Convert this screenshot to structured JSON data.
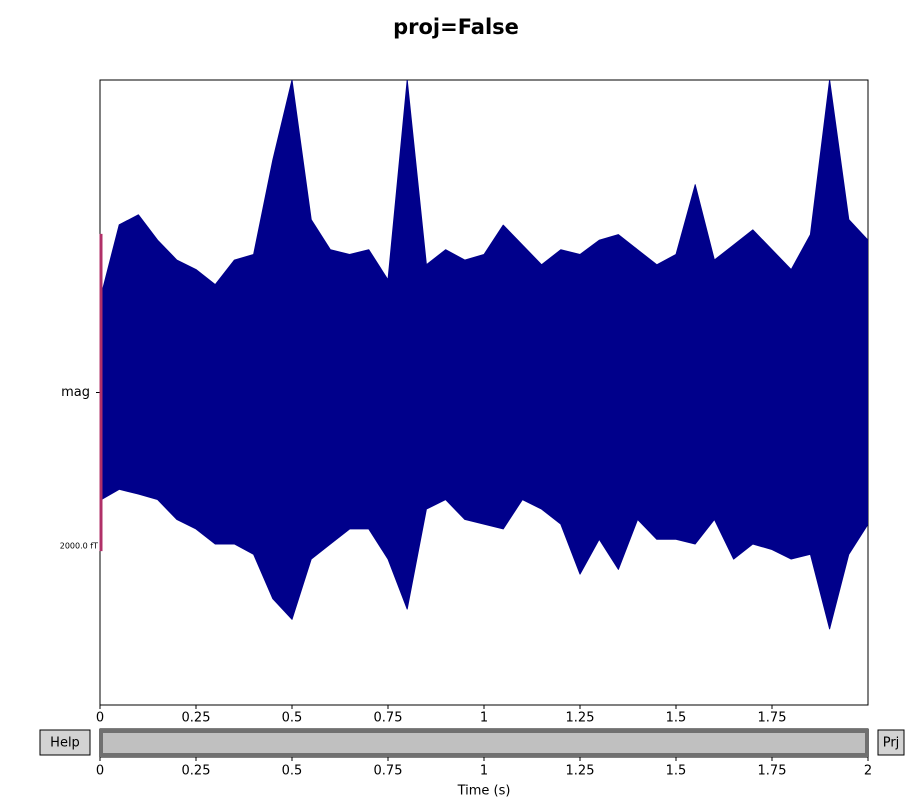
{
  "chart_data": {
    "type": "envelope",
    "title": "proj=False",
    "color": "#00008b",
    "xlim": [
      0,
      2
    ],
    "xticks": [
      0,
      0.25,
      0.5,
      0.75,
      1,
      1.25,
      1.5,
      1.75
    ],
    "ylim": [
      -1970,
      1970
    ],
    "yticks": [
      {
        "value": 0,
        "label": "mag"
      }
    ],
    "envelope": {
      "x": [
        0,
        0.05,
        0.1,
        0.15,
        0.2,
        0.25,
        0.3,
        0.35,
        0.4,
        0.45,
        0.5,
        0.55,
        0.6,
        0.65,
        0.7,
        0.75,
        0.8,
        0.85,
        0.9,
        0.95,
        1,
        1.05,
        1.1,
        1.15,
        1.2,
        1.25,
        1.3,
        1.35,
        1.4,
        1.45,
        1.5,
        1.55,
        1.6,
        1.65,
        1.7,
        1.75,
        1.8,
        1.85,
        1.9,
        1.95,
        2
      ],
      "upper": [
        585,
        1057,
        1120,
        960,
        835,
        775,
        680,
        835,
        870,
        1465,
        1970,
        1090,
        900,
        870,
        900,
        710,
        1970,
        805,
        900,
        835,
        870,
        1055,
        930,
        805,
        900,
        870,
        960,
        995,
        900,
        805,
        870,
        1310,
        835,
        930,
        1025,
        900,
        775,
        995,
        1970,
        1090,
        960
      ],
      "lower": [
        -680,
        -610,
        -640,
        -675,
        -800,
        -860,
        -955,
        -955,
        -1020,
        -1300,
        -1430,
        -1050,
        -955,
        -860,
        -860,
        -1050,
        -1365,
        -735,
        -675,
        -800,
        -830,
        -860,
        -675,
        -735,
        -830,
        -1145,
        -925,
        -1115,
        -800,
        -925,
        -925,
        -955,
        -800,
        -1050,
        -955,
        -990,
        -1050,
        -1020,
        -1490,
        -1020,
        -830
      ]
    },
    "scale_bar": {
      "value": 2000,
      "label": "2000.0 fT",
      "color": "#b03068"
    },
    "buttons": [
      "Help",
      "Prj"
    ],
    "scrollbar": {
      "xlim": [
        0,
        2
      ],
      "xticks": [
        0,
        0.25,
        0.5,
        0.75,
        1,
        1.25,
        1.5,
        1.75,
        2
      ],
      "xlabel": "Time (s)",
      "window": [
        0,
        2
      ]
    }
  }
}
